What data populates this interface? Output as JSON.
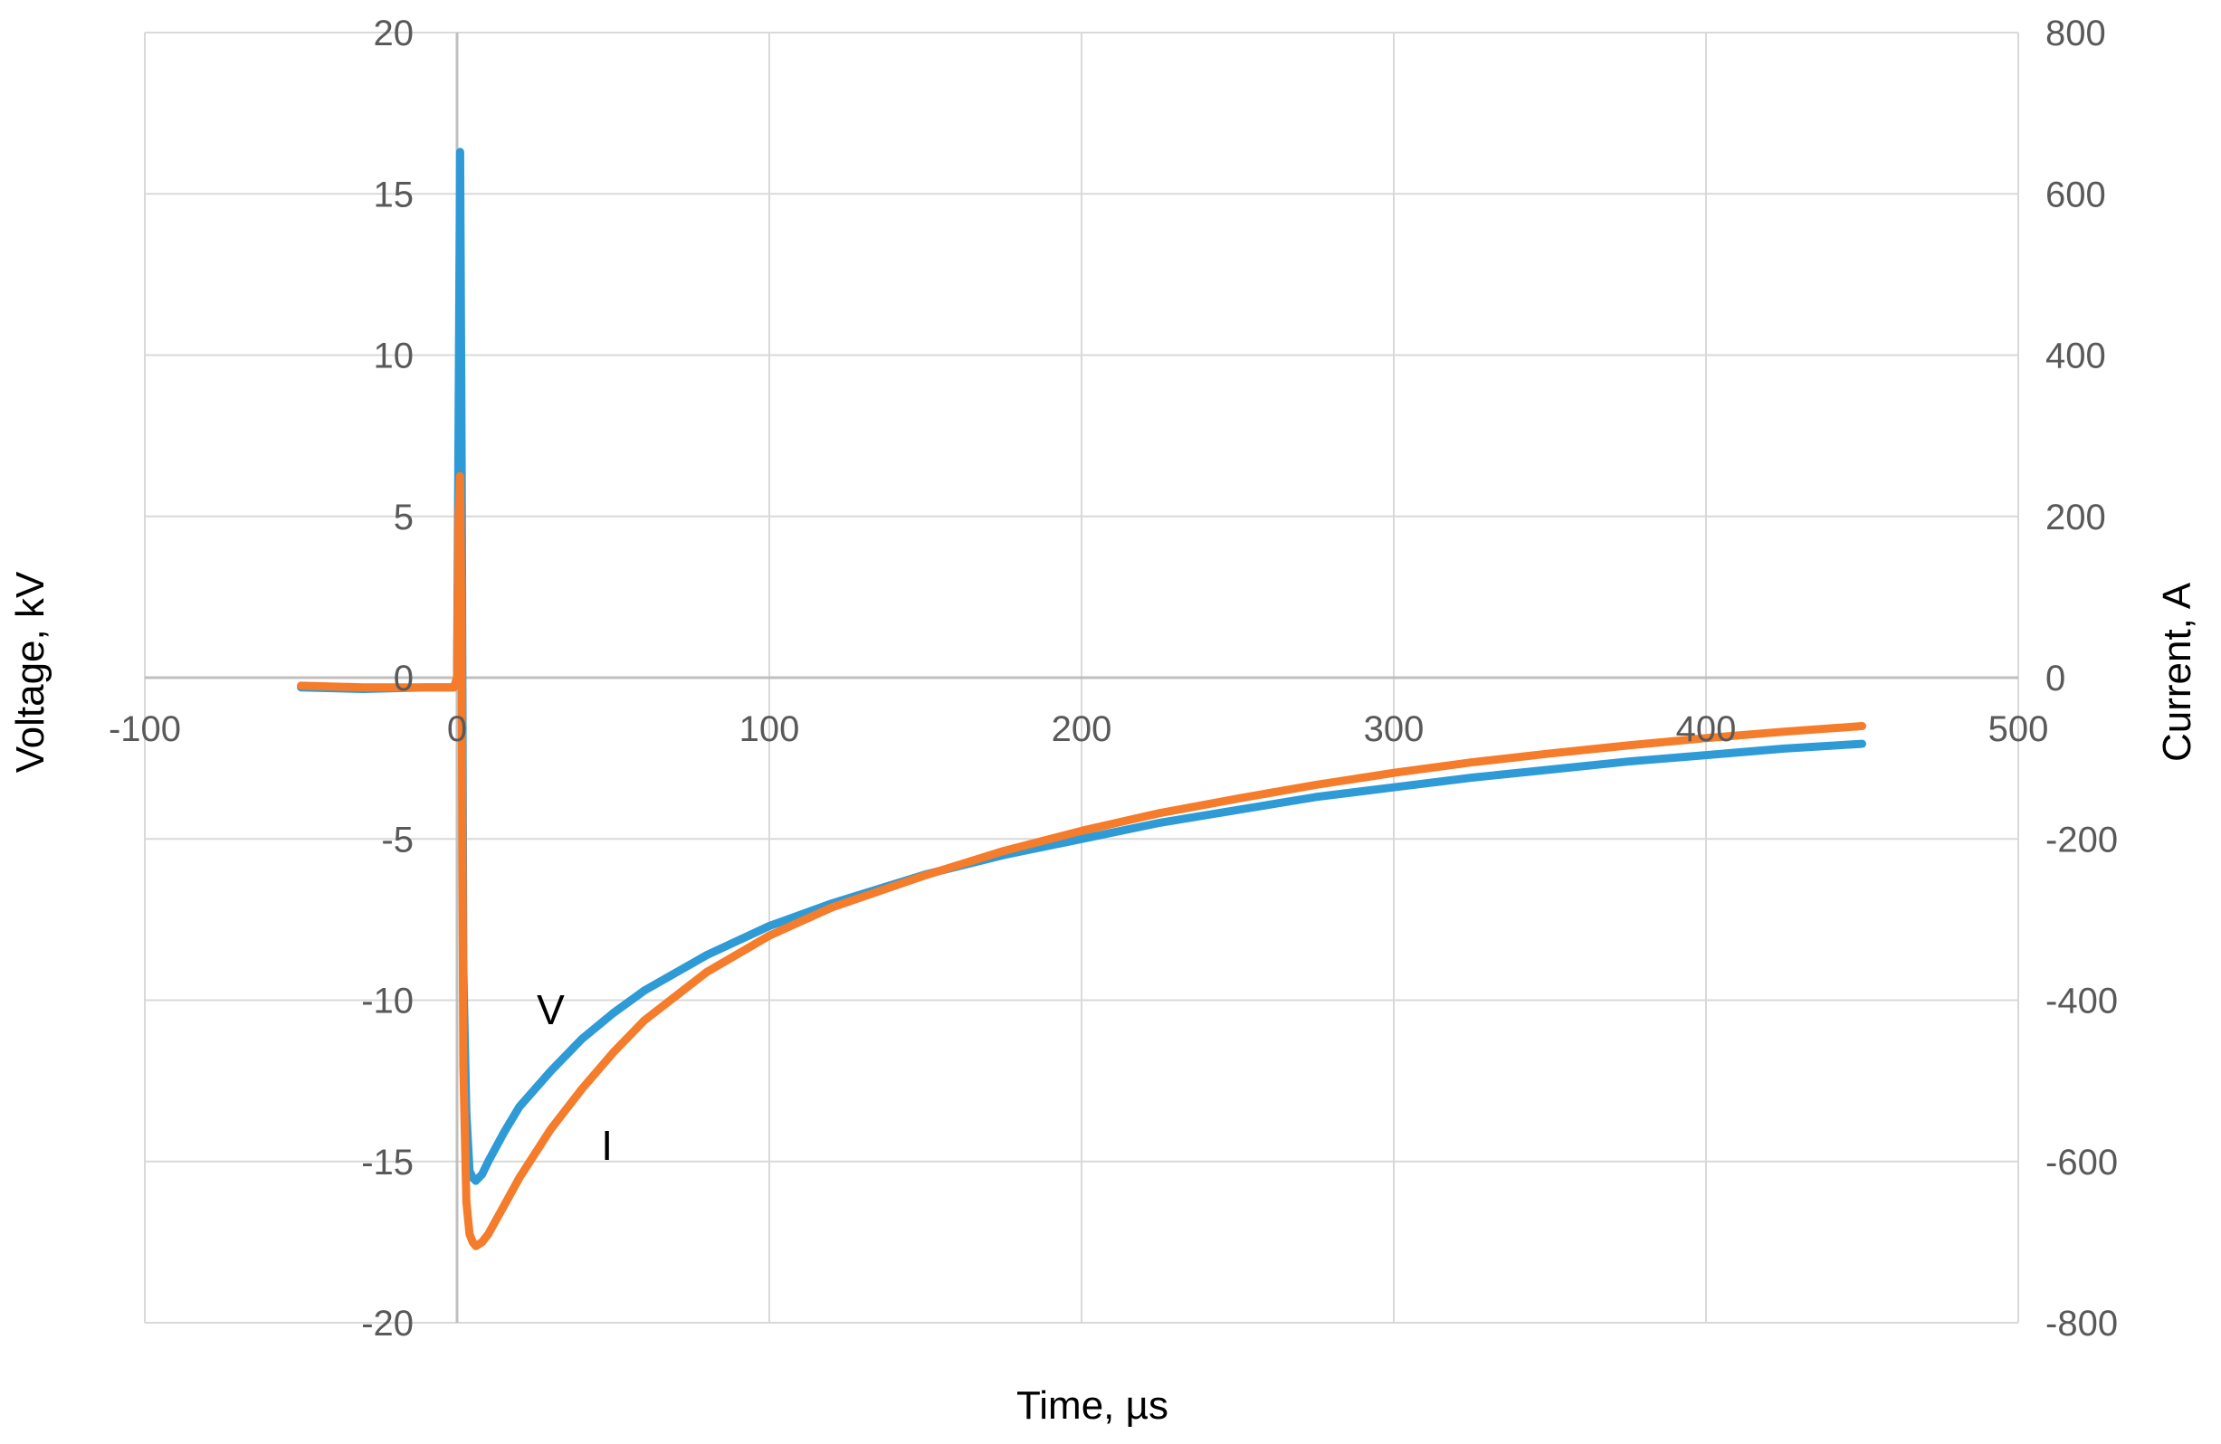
{
  "chart_data": {
    "type": "line",
    "title": "",
    "xlabel": "Time, µs",
    "ylabel": "Voltage, kV",
    "y2label": "Current, A",
    "xlim": [
      -100,
      500
    ],
    "ylim": [
      -20,
      20
    ],
    "y2lim": [
      -800,
      800
    ],
    "x_ticks": [
      -100,
      0,
      100,
      200,
      300,
      400,
      500
    ],
    "y_ticks": [
      -20,
      -15,
      -10,
      -5,
      0,
      5,
      10,
      15,
      20
    ],
    "y2_ticks": [
      -800,
      -600,
      -400,
      -200,
      0,
      200,
      400,
      600,
      800
    ],
    "grid": true,
    "legend": "none",
    "colors": {
      "voltage": "#2e9ad6",
      "current": "#f47c2b",
      "grid": "#d9d9d9",
      "tick_text": "#595959"
    },
    "series": [
      {
        "name": "V",
        "axis": "left",
        "x": [
          -50,
          -30,
          -10,
          -1,
          0,
          0.5,
          1,
          1.5,
          2,
          3,
          4,
          5,
          6,
          8,
          10,
          15,
          20,
          30,
          40,
          50,
          60,
          80,
          100,
          120,
          150,
          175,
          200,
          225,
          250,
          275,
          300,
          325,
          350,
          375,
          400,
          425,
          450
        ],
        "y": [
          -0.3,
          -0.35,
          -0.3,
          -0.3,
          0,
          8,
          16.3,
          6,
          -9,
          -13.5,
          -15.3,
          -15.5,
          -15.6,
          -15.4,
          -15.0,
          -14.1,
          -13.3,
          -12.2,
          -11.2,
          -10.4,
          -9.7,
          -8.6,
          -7.7,
          -7.0,
          -6.1,
          -5.5,
          -5.0,
          -4.5,
          -4.1,
          -3.7,
          -3.4,
          -3.1,
          -2.85,
          -2.6,
          -2.4,
          -2.2,
          -2.05
        ]
      },
      {
        "name": "I",
        "axis": "right",
        "x": [
          -50,
          -30,
          -10,
          -1,
          0,
          0.5,
          1,
          1.5,
          2,
          3,
          4,
          5,
          6,
          8,
          10,
          15,
          20,
          30,
          40,
          50,
          60,
          80,
          100,
          120,
          150,
          175,
          200,
          225,
          250,
          275,
          300,
          325,
          350,
          375,
          400,
          425,
          450
        ],
        "y": [
          -10,
          -12,
          -12,
          -12,
          0,
          200,
          250,
          0,
          -480,
          -650,
          -690,
          -700,
          -705,
          -700,
          -690,
          -655,
          -620,
          -560,
          -510,
          -465,
          -425,
          -365,
          -320,
          -285,
          -245,
          -215,
          -190,
          -168,
          -150,
          -133,
          -118,
          -105,
          -94,
          -84,
          -75,
          -67,
          -60
        ]
      }
    ],
    "annotations": [
      {
        "text": "V",
        "x": 30,
        "y": -10.3
      },
      {
        "text": "I",
        "x": 48,
        "y": -14.5
      }
    ]
  }
}
